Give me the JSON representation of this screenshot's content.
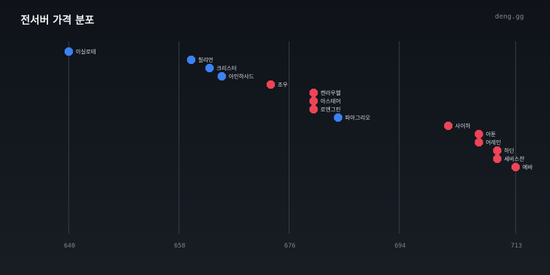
{
  "header": {
    "title": "전서버 가격 분포",
    "brand": "deng.gg"
  },
  "colors": {
    "blue": "#3b82f6",
    "red": "#ef4456",
    "grid": "#3a424d"
  },
  "chart_data": {
    "type": "scatter",
    "title": "전서버 가격 분포",
    "xlabel": "",
    "ylabel": "",
    "xlim": [
      640,
      713
    ],
    "x_ticks": [
      640,
      658,
      676,
      694,
      713
    ],
    "grid": true,
    "points": [
      {
        "label": "이실로테",
        "value": 640,
        "color": "blue"
      },
      {
        "label": "칠리언",
        "value": 660,
        "color": "blue"
      },
      {
        "label": "크리스터",
        "value": 663,
        "color": "blue"
      },
      {
        "label": "아인하사드",
        "value": 665,
        "color": "blue"
      },
      {
        "label": "조우",
        "value": 673,
        "color": "red"
      },
      {
        "label": "켄라우헬",
        "value": 680,
        "color": "red"
      },
      {
        "label": "아스테어",
        "value": 680,
        "color": "red"
      },
      {
        "label": "로엔그린",
        "value": 680,
        "color": "red"
      },
      {
        "label": "파아그리오",
        "value": 684,
        "color": "blue"
      },
      {
        "label": "사이하",
        "value": 702,
        "color": "red"
      },
      {
        "label": "아툰",
        "value": 707,
        "color": "red"
      },
      {
        "label": "어레인",
        "value": 707,
        "color": "red"
      },
      {
        "label": "하딘",
        "value": 710,
        "color": "red"
      },
      {
        "label": "세비스챤",
        "value": 710,
        "color": "red"
      },
      {
        "label": "에바",
        "value": 713,
        "color": "red"
      }
    ]
  }
}
